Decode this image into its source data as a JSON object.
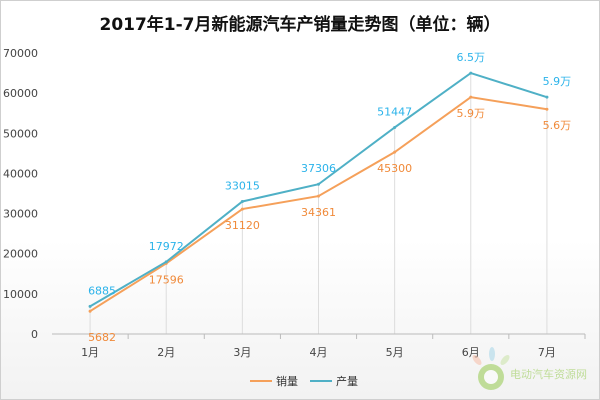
{
  "chart_data": {
    "type": "line",
    "title": "2017年1-7月新能源汽车产销量走势图（单位：辆）",
    "categories": [
      "1月",
      "2月",
      "3月",
      "4月",
      "5月",
      "6月",
      "7月"
    ],
    "ylim": [
      0,
      70000
    ],
    "yticks": [
      "0",
      "10000",
      "20000",
      "30000",
      "40000",
      "50000",
      "60000",
      "70000"
    ],
    "grid": true,
    "legend_position": "bottom-center",
    "series": [
      {
        "name": "销量",
        "color": "#f5a05a",
        "label_color": "#f08a3a",
        "values": [
          5682,
          17596,
          31120,
          34361,
          45300,
          59000,
          56000
        ],
        "labels": [
          "5682",
          "17596",
          "31120",
          "34361",
          "45300",
          "5.9万",
          "5.6万"
        ]
      },
      {
        "name": "产量",
        "color": "#4fb0c6",
        "label_color": "#2bb3ea",
        "values": [
          6885,
          17972,
          33015,
          37306,
          51447,
          65000,
          59000
        ],
        "labels": [
          "6885",
          "17972",
          "33015",
          "37306",
          "51447",
          "6.5万",
          "5.9万"
        ]
      }
    ]
  },
  "watermark": "电动汽车资源网"
}
